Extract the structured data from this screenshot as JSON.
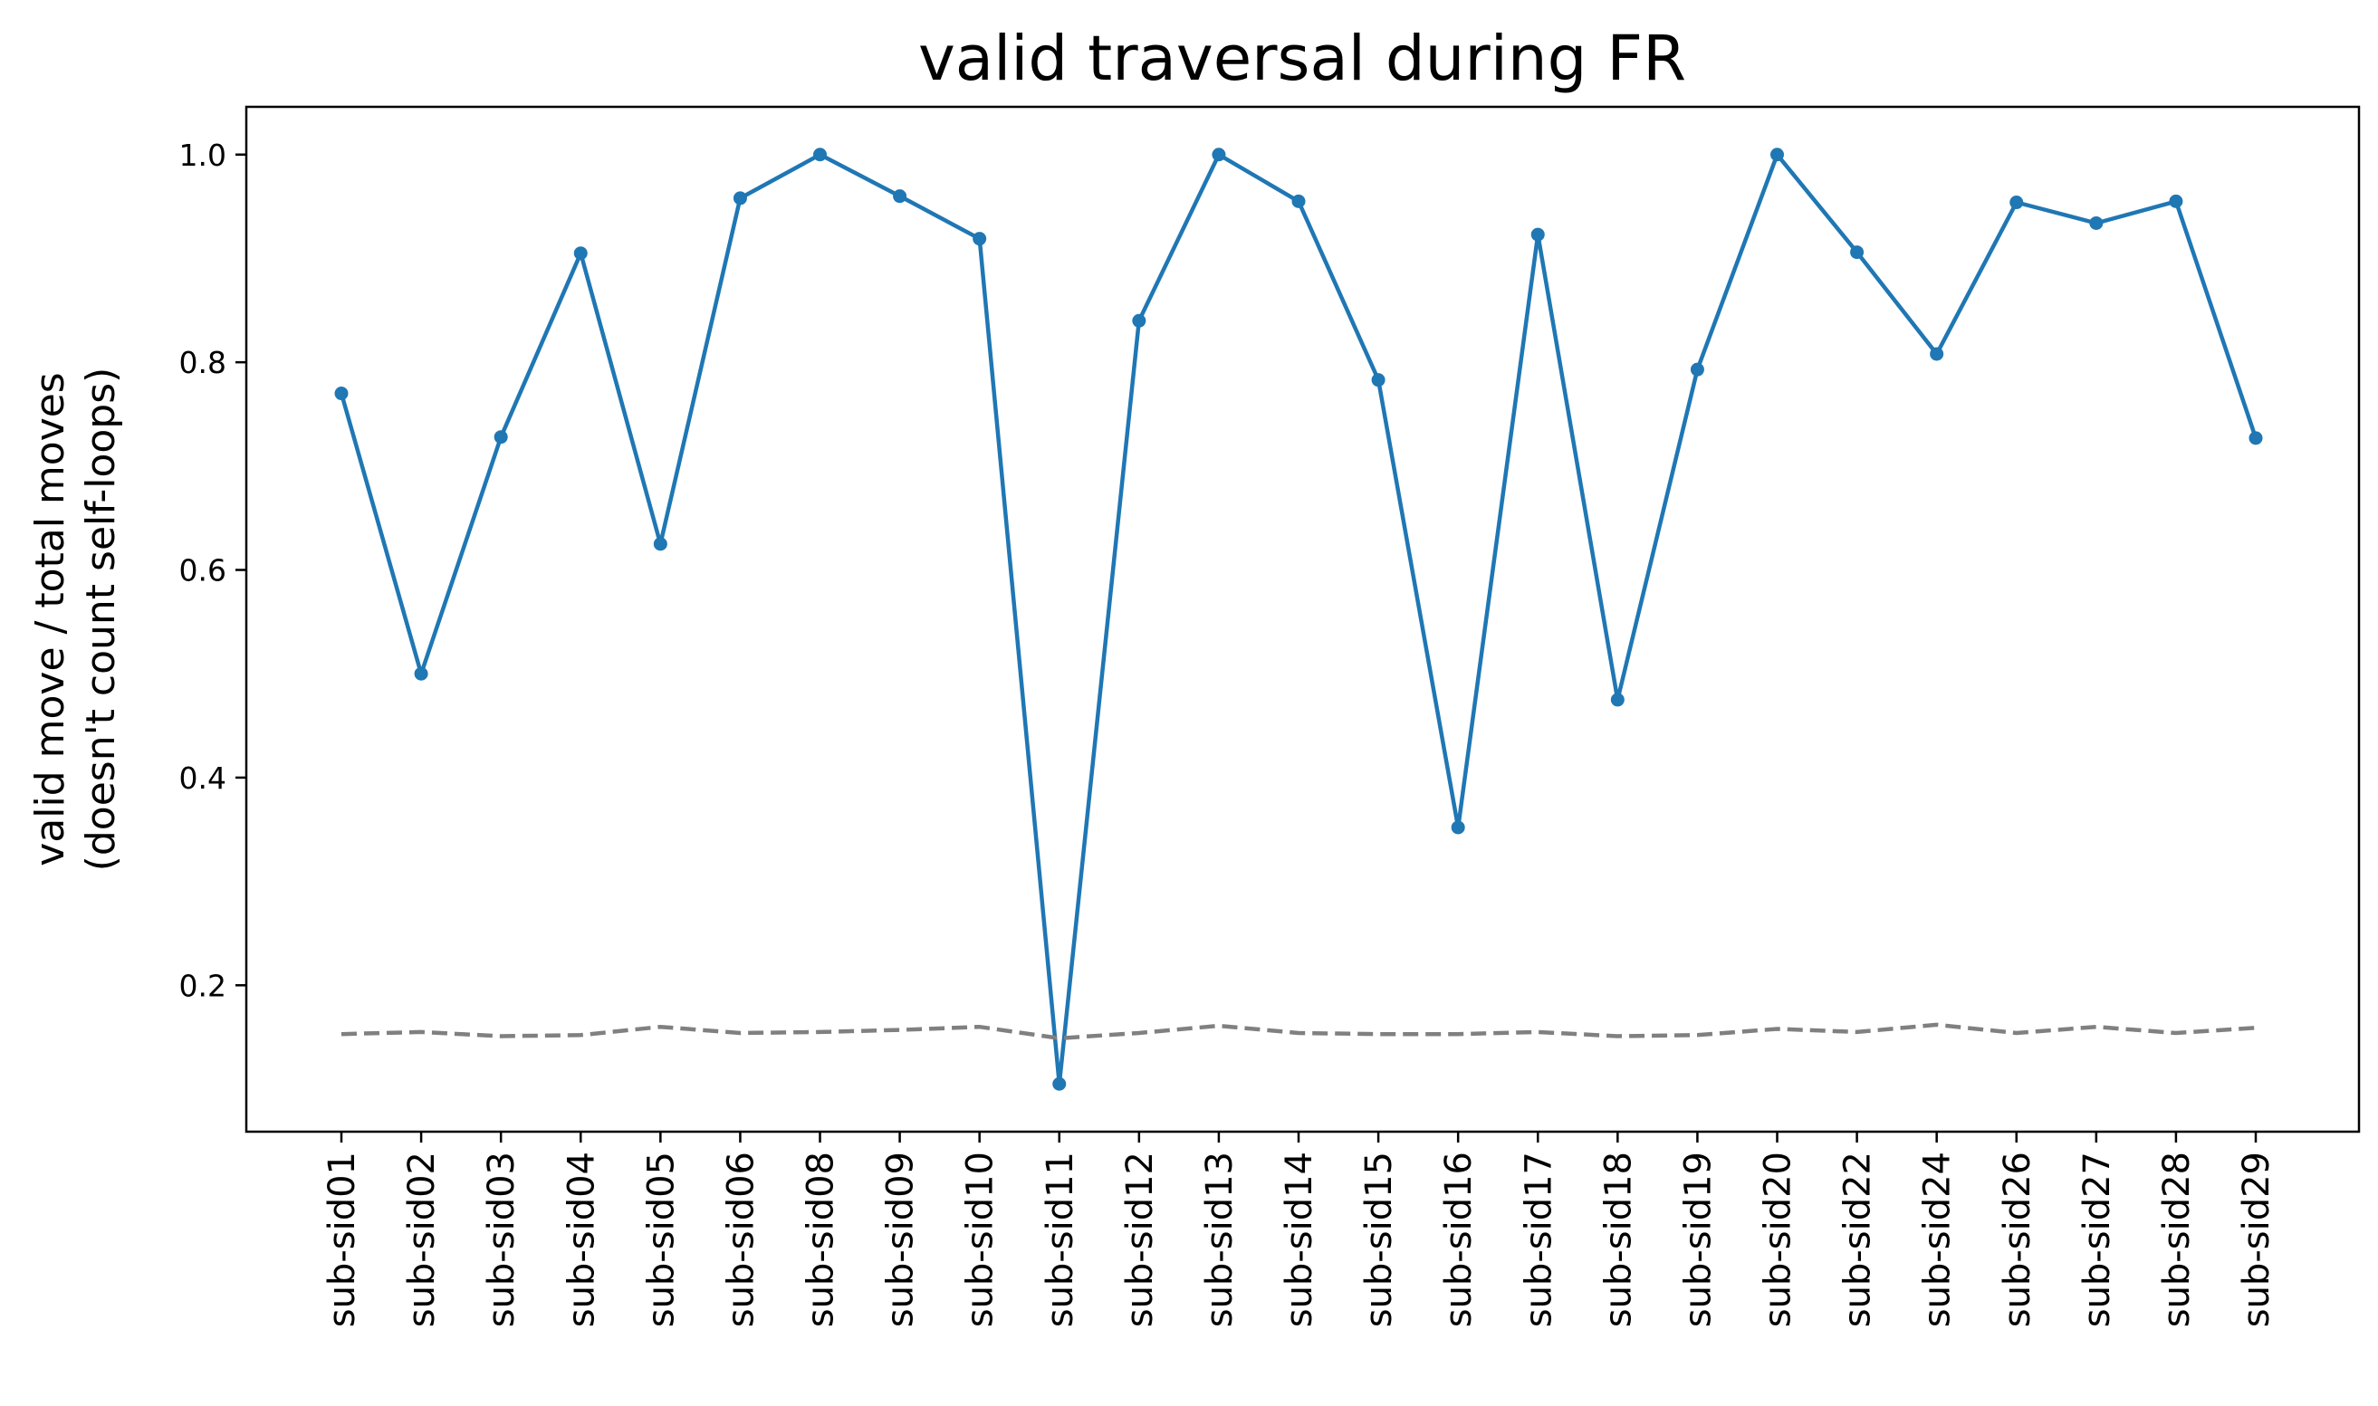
{
  "chart_data": {
    "type": "line",
    "title": "valid traversal during FR",
    "xlabel": "",
    "ylabel_lines": [
      "valid move / total moves",
      "(doesn't count self-loops)"
    ],
    "categories": [
      "sub-sid01",
      "sub-sid02",
      "sub-sid03",
      "sub-sid04",
      "sub-sid05",
      "sub-sid06",
      "sub-sid08",
      "sub-sid09",
      "sub-sid10",
      "sub-sid11",
      "sub-sid12",
      "sub-sid13",
      "sub-sid14",
      "sub-sid15",
      "sub-sid16",
      "sub-sid17",
      "sub-sid18",
      "sub-sid19",
      "sub-sid20",
      "sub-sid22",
      "sub-sid24",
      "sub-sid26",
      "sub-sid27",
      "sub-sid28",
      "sub-sid29"
    ],
    "series": [
      {
        "style": "solid-with-markers",
        "color": "#1f77b4",
        "values": [
          0.77,
          0.5,
          0.728,
          0.905,
          0.625,
          0.958,
          1.0,
          0.96,
          0.919,
          0.105,
          0.84,
          1.0,
          0.955,
          0.783,
          0.352,
          0.923,
          0.475,
          0.793,
          1.0,
          0.906,
          0.808,
          0.954,
          0.934,
          0.955,
          0.727
        ]
      },
      {
        "style": "dashed",
        "color": "#808080",
        "values": [
          0.153,
          0.155,
          0.151,
          0.152,
          0.16,
          0.154,
          0.155,
          0.157,
          0.16,
          0.149,
          0.154,
          0.161,
          0.154,
          0.153,
          0.153,
          0.155,
          0.151,
          0.152,
          0.158,
          0.155,
          0.162,
          0.154,
          0.16,
          0.154,
          0.159
        ]
      }
    ],
    "yticks": [
      0.2,
      0.4,
      0.6,
      0.8,
      1.0
    ],
    "ytick_labels": [
      "0.2",
      "0.4",
      "0.6",
      "0.8",
      "1.0"
    ],
    "ylim": [
      0.059,
      1.046
    ],
    "grid": false,
    "legend": "none"
  }
}
